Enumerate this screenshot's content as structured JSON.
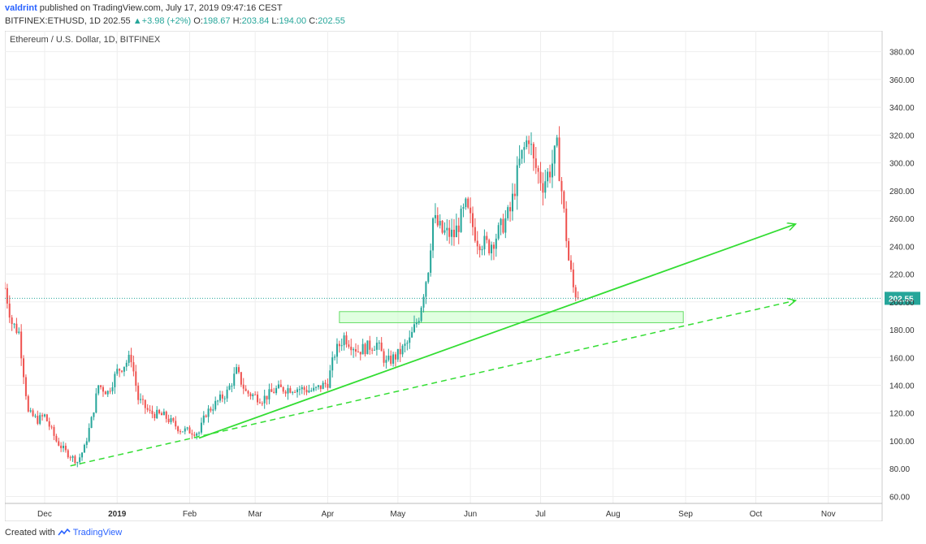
{
  "header": {
    "author": "valdrint",
    "published_text": "published on TradingView.com, July 17, 2019 09:47:16 CEST",
    "symbol": "BITFINEX:ETHUSD, 1D",
    "last": "202.55",
    "change": "+3.98 (+2%)",
    "o_label": "O:",
    "o_value": "198.67",
    "h_label": "H:",
    "h_value": "203.84",
    "l_label": "L:",
    "l_value": "194.00",
    "c_label": "C:",
    "c_value": "202.55"
  },
  "footer": {
    "created_with": "Created with",
    "brand": "TradingView"
  },
  "colors": {
    "up": "#26a69a",
    "down": "#ef5350",
    "trend": "#33dd33",
    "zone_fill": "#ccffcc",
    "zone_stroke": "#66dd66",
    "price_line": "#26a69a",
    "grid": "#eeeeee"
  },
  "chart_data": {
    "type": "candlestick",
    "title": "Ethereum / U.S. Dollar, 1D, BITFINEX",
    "x_ticks": [
      "Dec",
      "2019",
      "Feb",
      "Mar",
      "Apr",
      "May",
      "Jun",
      "Jul",
      "Aug",
      "Sep",
      "Oct",
      "Nov"
    ],
    "y_ticks": [
      "60.00",
      "80.00",
      "100.00",
      "120.00",
      "140.00",
      "160.00",
      "180.00",
      "200.00",
      "220.00",
      "240.00",
      "260.00",
      "280.00",
      "300.00",
      "320.00",
      "340.00",
      "360.00",
      "380.00"
    ],
    "ylim": [
      55,
      395
    ],
    "xlim": [
      "2018-11-14",
      "2019-11-24"
    ],
    "last_price_label": "202.55",
    "last_price": 202.55,
    "anchors": [
      [
        "2018-11-14",
        210
      ],
      [
        "2018-11-17",
        185
      ],
      [
        "2018-11-20",
        178
      ],
      [
        "2018-11-24",
        120
      ],
      [
        "2018-11-28",
        115
      ],
      [
        "2018-12-01",
        118
      ],
      [
        "2018-12-06",
        100
      ],
      [
        "2018-12-10",
        92
      ],
      [
        "2018-12-15",
        85
      ],
      [
        "2018-12-18",
        95
      ],
      [
        "2018-12-21",
        115
      ],
      [
        "2018-12-24",
        140
      ],
      [
        "2018-12-28",
        135
      ],
      [
        "2019-01-01",
        150
      ],
      [
        "2019-01-07",
        160
      ],
      [
        "2019-01-10",
        130
      ],
      [
        "2019-01-15",
        120
      ],
      [
        "2019-01-21",
        118
      ],
      [
        "2019-01-28",
        108
      ],
      [
        "2019-02-05",
        106
      ],
      [
        "2019-02-08",
        120
      ],
      [
        "2019-02-17",
        135
      ],
      [
        "2019-02-21",
        150
      ],
      [
        "2019-02-25",
        135
      ],
      [
        "2019-03-04",
        130
      ],
      [
        "2019-03-10",
        137
      ],
      [
        "2019-03-18",
        138
      ],
      [
        "2019-03-26",
        136
      ],
      [
        "2019-04-01",
        142
      ],
      [
        "2019-04-04",
        163
      ],
      [
        "2019-04-08",
        175
      ],
      [
        "2019-04-14",
        165
      ],
      [
        "2019-04-22",
        170
      ],
      [
        "2019-04-26",
        156
      ],
      [
        "2019-05-01",
        162
      ],
      [
        "2019-05-06",
        172
      ],
      [
        "2019-05-10",
        190
      ],
      [
        "2019-05-14",
        225
      ],
      [
        "2019-05-16",
        260
      ],
      [
        "2019-05-20",
        250
      ],
      [
        "2019-05-25",
        248
      ],
      [
        "2019-05-30",
        268
      ],
      [
        "2019-06-04",
        245
      ],
      [
        "2019-06-09",
        240
      ],
      [
        "2019-06-13",
        250
      ],
      [
        "2019-06-18",
        265
      ],
      [
        "2019-06-22",
        300
      ],
      [
        "2019-06-26",
        320
      ],
      [
        "2019-06-28",
        300
      ],
      [
        "2019-07-02",
        285
      ],
      [
        "2019-07-05",
        295
      ],
      [
        "2019-07-08",
        310
      ],
      [
        "2019-07-10",
        280
      ],
      [
        "2019-07-13",
        230
      ],
      [
        "2019-07-15",
        210
      ],
      [
        "2019-07-17",
        202.55
      ]
    ],
    "support_zone": {
      "x_start": "2019-04-06",
      "x_end": "2019-08-31",
      "y_low": 185,
      "y_high": 193
    },
    "trendline_solid": {
      "from": [
        "2019-02-05",
        102
      ],
      "to": [
        "2019-10-18",
        256
      ],
      "arrow": true
    },
    "trendline_dashed": {
      "from": [
        "2018-12-12",
        82
      ],
      "to": [
        "2019-10-18",
        201
      ],
      "arrow": true
    },
    "grid": true,
    "legend": "none"
  }
}
